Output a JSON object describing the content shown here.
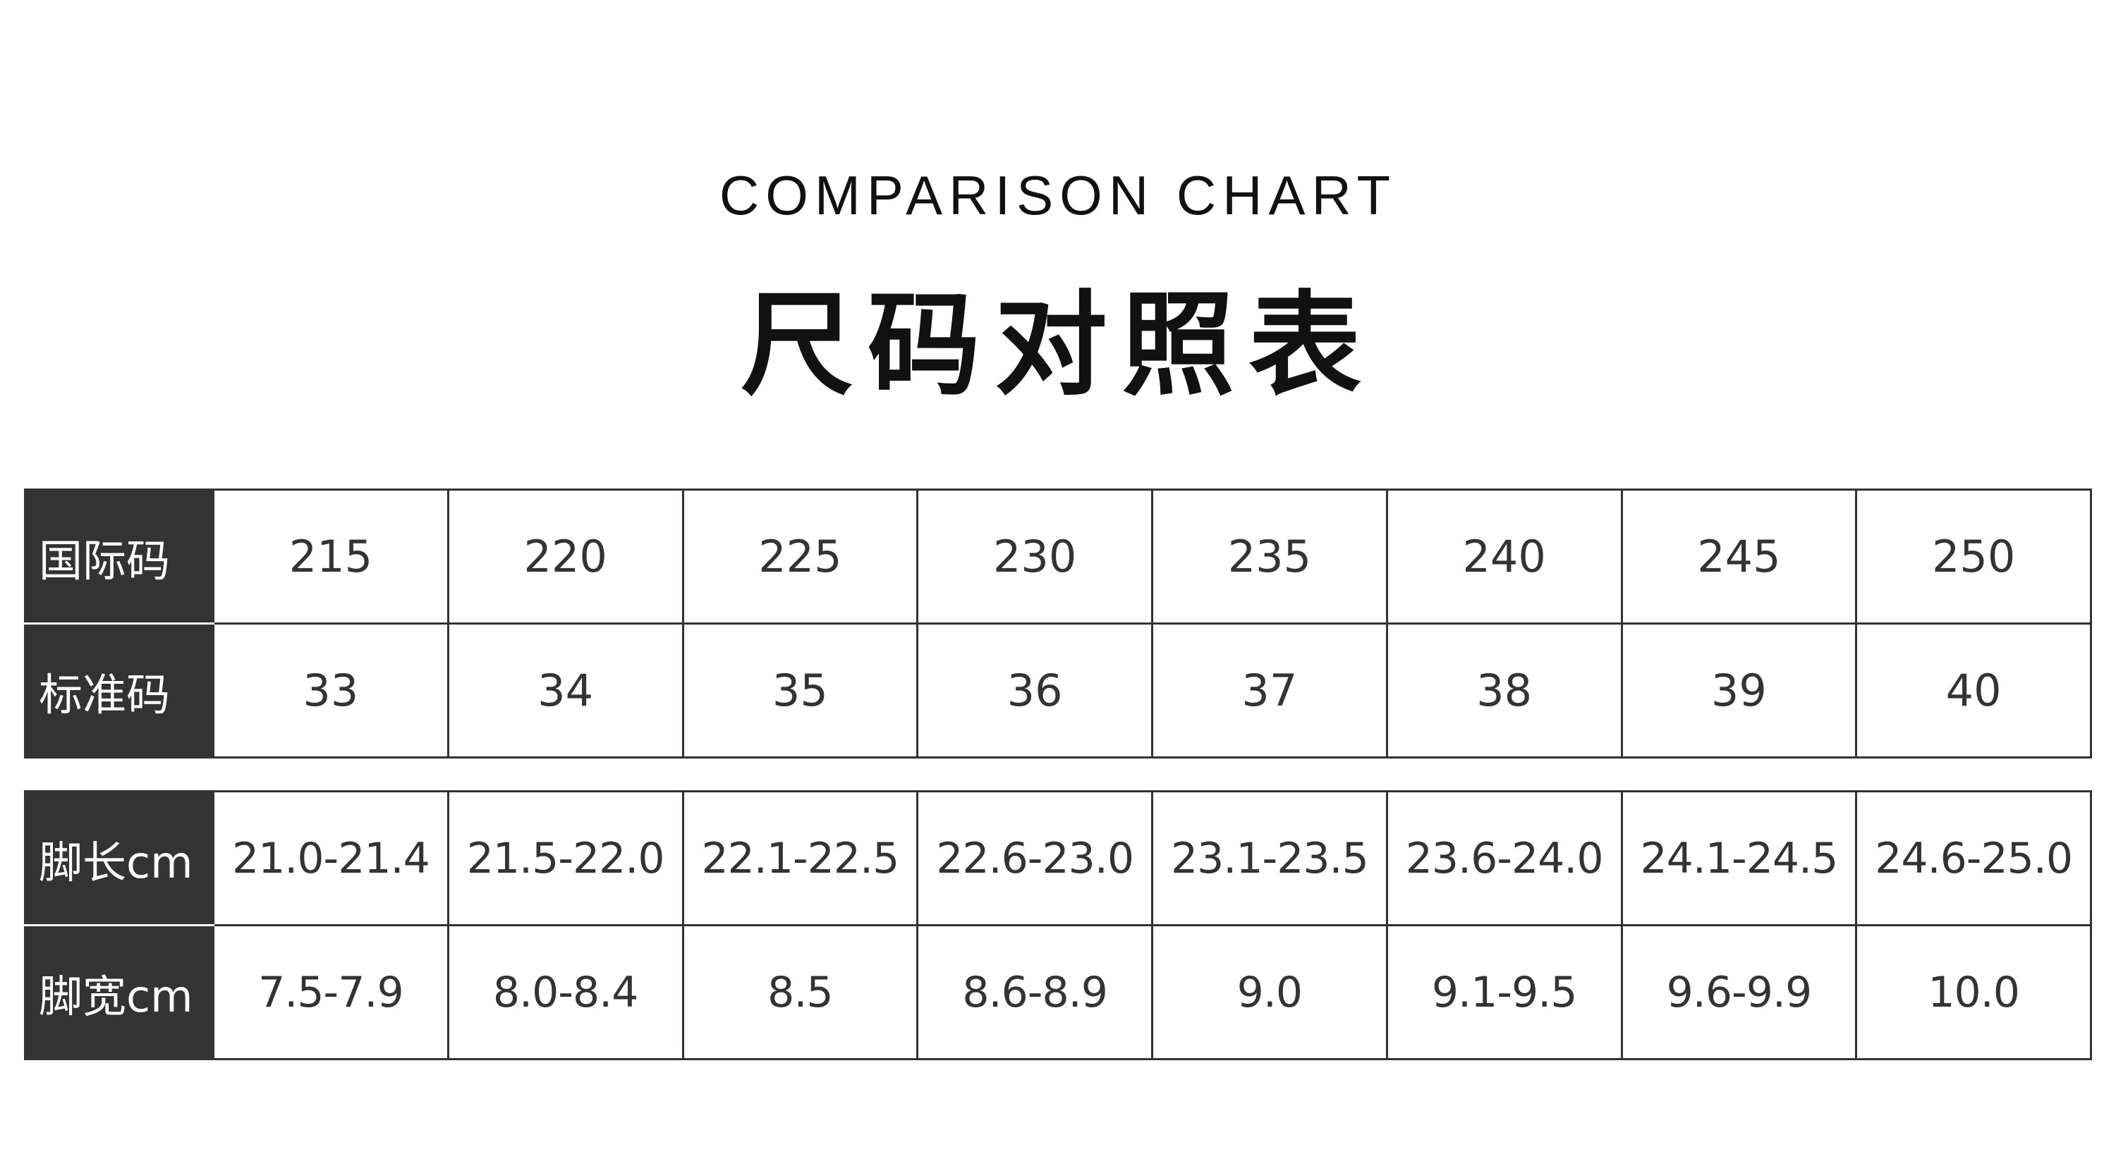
{
  "header": {
    "subtitle": "COMPARISON CHART",
    "title": "尺码对照表"
  },
  "table1": {
    "rows": [
      {
        "label": "国际码",
        "values": [
          "215",
          "220",
          "225",
          "230",
          "235",
          "240",
          "245",
          "250"
        ]
      },
      {
        "label": "标准码",
        "values": [
          "33",
          "34",
          "35",
          "36",
          "37",
          "38",
          "39",
          "40"
        ]
      }
    ]
  },
  "table2": {
    "rows": [
      {
        "label": "脚长cm",
        "values": [
          "21.0-21.4",
          "21.5-22.0",
          "22.1-22.5",
          "22.6-23.0",
          "23.1-23.5",
          "23.6-24.0",
          "24.1-24.5",
          "24.6-25.0"
        ]
      },
      {
        "label": "脚宽cm",
        "values": [
          "7.5-7.9",
          "8.0-8.4",
          "8.5",
          "8.6-8.9",
          "9.0",
          "9.1-9.5",
          "9.6-9.9",
          "10.0"
        ]
      }
    ]
  },
  "colors": {
    "header_bg": "#333333",
    "text": "#333333",
    "background": "#ffffff"
  }
}
